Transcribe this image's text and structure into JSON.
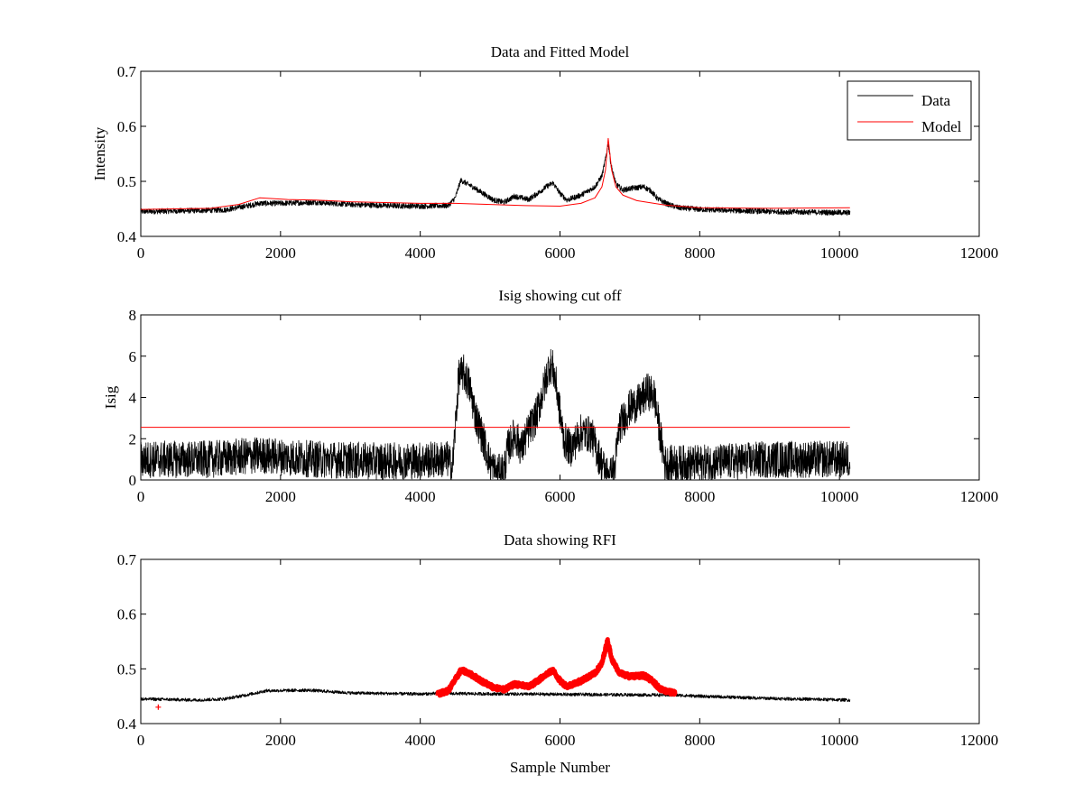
{
  "figure": {
    "background": "#ffffff",
    "colors": {
      "data": "#000000",
      "model": "#ff0000",
      "rfi": "#ff0000"
    }
  },
  "chart_data": [
    {
      "type": "line",
      "title": "Data and Fitted Model",
      "xlabel": "",
      "ylabel": "Intensity",
      "xlim": [
        0,
        12000
      ],
      "ylim": [
        0.4,
        0.7
      ],
      "xticks": [
        0,
        2000,
        4000,
        6000,
        8000,
        10000,
        12000
      ],
      "yticks": [
        0.4,
        0.5,
        0.6,
        0.7
      ],
      "xtick_labels": [
        "0",
        "2000",
        "4000",
        "6000",
        "8000",
        "10000",
        "12000"
      ],
      "ytick_labels": [
        "0.4",
        "0.5",
        "0.6",
        "0.7"
      ],
      "legend": {
        "position": "top-right",
        "entries": [
          "Data",
          "Model"
        ]
      },
      "series": [
        {
          "name": "Data",
          "color": "#000000",
          "style": "noisy",
          "noise": 0.005,
          "x": [
            0,
            800,
            1200,
            1500,
            1700,
            2000,
            2500,
            3000,
            3500,
            4000,
            4400,
            4500,
            4580,
            4650,
            4750,
            4900,
            5050,
            5200,
            5350,
            5450,
            5550,
            5700,
            5800,
            5900,
            6000,
            6100,
            6300,
            6500,
            6600,
            6650,
            6690,
            6730,
            6800,
            6900,
            7000,
            7200,
            7300,
            7400,
            7550,
            7700,
            8000,
            9000,
            10150
          ],
          "y": [
            0.445,
            0.447,
            0.448,
            0.455,
            0.46,
            0.46,
            0.462,
            0.458,
            0.456,
            0.455,
            0.456,
            0.47,
            0.502,
            0.497,
            0.49,
            0.478,
            0.466,
            0.462,
            0.473,
            0.47,
            0.467,
            0.48,
            0.49,
            0.497,
            0.478,
            0.466,
            0.475,
            0.49,
            0.51,
            0.54,
            0.57,
            0.53,
            0.495,
            0.484,
            0.487,
            0.49,
            0.483,
            0.468,
            0.458,
            0.452,
            0.449,
            0.445,
            0.443
          ]
        },
        {
          "name": "Model",
          "color": "#ff0000",
          "style": "line",
          "x": [
            0,
            1000,
            1400,
            1700,
            2100,
            2500,
            3000,
            4000,
            4500,
            5000,
            5500,
            6000,
            6300,
            6500,
            6600,
            6650,
            6690,
            6740,
            6800,
            6900,
            7100,
            7500,
            8000,
            9000,
            10150
          ],
          "y": [
            0.449,
            0.451,
            0.458,
            0.47,
            0.467,
            0.466,
            0.463,
            0.46,
            0.46,
            0.458,
            0.456,
            0.455,
            0.46,
            0.47,
            0.49,
            0.52,
            0.578,
            0.52,
            0.49,
            0.475,
            0.465,
            0.457,
            0.452,
            0.451,
            0.452
          ]
        }
      ]
    },
    {
      "type": "line",
      "title": "Isig showing cut off",
      "xlabel": "",
      "ylabel": "Isig",
      "xlim": [
        0,
        12000
      ],
      "ylim": [
        0,
        8
      ],
      "xticks": [
        0,
        2000,
        4000,
        6000,
        8000,
        10000,
        12000
      ],
      "yticks": [
        0,
        2,
        4,
        6,
        8
      ],
      "xtick_labels": [
        "0",
        "2000",
        "4000",
        "6000",
        "8000",
        "10000",
        "12000"
      ],
      "ytick_labels": [
        "0",
        "2",
        "4",
        "6",
        "8"
      ],
      "series": [
        {
          "name": "Isig",
          "color": "#000000",
          "style": "noisy",
          "noise": 0.9,
          "x": [
            0,
            1000,
            1700,
            2500,
            3500,
            4400,
            4460,
            4550,
            4620,
            4700,
            4800,
            4900,
            5000,
            5100,
            5200,
            5250,
            5350,
            5450,
            5550,
            5650,
            5750,
            5850,
            5900,
            5950,
            6050,
            6150,
            6300,
            6450,
            6550,
            6650,
            6720,
            6780,
            6850,
            7000,
            7150,
            7250,
            7350,
            7420,
            7500,
            8000,
            9000,
            10150
          ],
          "y": [
            1.0,
            1.0,
            1.2,
            1.0,
            0.9,
            1.0,
            0.5,
            5.0,
            5.2,
            4.6,
            3.0,
            2.0,
            0.8,
            0.3,
            0.5,
            1.5,
            2.2,
            1.5,
            2.4,
            3.0,
            4.2,
            5.6,
            5.4,
            4.5,
            2.0,
            1.5,
            2.3,
            2.2,
            1.2,
            0.4,
            0.2,
            0.5,
            2.6,
            3.5,
            3.8,
            4.3,
            4.1,
            2.5,
            0.8,
            0.8,
            1.0,
            1.0
          ]
        },
        {
          "name": "Cut off",
          "color": "#ff0000",
          "style": "line",
          "x": [
            0,
            10150
          ],
          "y": [
            2.55,
            2.55
          ]
        }
      ]
    },
    {
      "type": "line",
      "title": "Data showing RFI",
      "xlabel": "Sample Number",
      "ylabel": "",
      "xlim": [
        0,
        12000
      ],
      "ylim": [
        0.4,
        0.7
      ],
      "xticks": [
        0,
        2000,
        4000,
        6000,
        8000,
        10000,
        12000
      ],
      "yticks": [
        0.4,
        0.5,
        0.6,
        0.7
      ],
      "xtick_labels": [
        "0",
        "2000",
        "4000",
        "6000",
        "8000",
        "10000",
        "12000"
      ],
      "ytick_labels": [
        "0.4",
        "0.5",
        "0.6",
        "0.7"
      ],
      "series": [
        {
          "name": "Data",
          "color": "#000000",
          "style": "noisy",
          "noise": 0.003,
          "x": [
            0,
            800,
            1200,
            1500,
            1800,
            2400,
            3000,
            3500,
            4000,
            4250,
            7650,
            8000,
            9000,
            10150
          ],
          "y": [
            0.445,
            0.443,
            0.445,
            0.452,
            0.46,
            0.461,
            0.456,
            0.455,
            0.454,
            0.455,
            0.452,
            0.45,
            0.446,
            0.443
          ]
        },
        {
          "name": "RFI",
          "color": "#ff0000",
          "style": "thick",
          "noise": 0.004,
          "x": [
            4250,
            4400,
            4500,
            4580,
            4650,
            4750,
            4900,
            5050,
            5200,
            5350,
            5450,
            5550,
            5700,
            5800,
            5900,
            6000,
            6100,
            6300,
            6500,
            6600,
            6680,
            6750,
            6850,
            7000,
            7200,
            7300,
            7450,
            7650
          ],
          "y": [
            0.454,
            0.46,
            0.48,
            0.497,
            0.495,
            0.488,
            0.476,
            0.466,
            0.462,
            0.472,
            0.47,
            0.467,
            0.48,
            0.49,
            0.497,
            0.478,
            0.468,
            0.478,
            0.492,
            0.51,
            0.552,
            0.515,
            0.493,
            0.486,
            0.488,
            0.48,
            0.462,
            0.455
          ]
        },
        {
          "name": "RFI point",
          "color": "#ff0000",
          "style": "marker",
          "x": [
            250
          ],
          "y": [
            0.43
          ]
        }
      ]
    }
  ]
}
